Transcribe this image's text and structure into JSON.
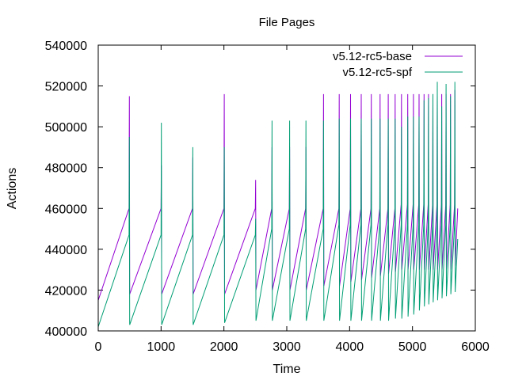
{
  "chart_data": {
    "type": "line",
    "title": "File Pages",
    "xlabel": "Time",
    "ylabel": "Actions",
    "xlim": [
      0,
      6000
    ],
    "ylim": [
      400000,
      540000
    ],
    "xticks": [
      "0",
      "1000",
      "2000",
      "3000",
      "4000",
      "5000",
      "6000"
    ],
    "yticks": [
      "400000",
      "420000",
      "440000",
      "460000",
      "480000",
      "500000",
      "520000",
      "540000"
    ],
    "grid": false,
    "legend_position": "top-right",
    "series": [
      {
        "name": "v5.12-rc5-base",
        "color": "#9400d3",
        "x": [
          0,
          490,
          495,
          500,
          1000,
          1005,
          1010,
          1500,
          1505,
          1510,
          2000,
          2005,
          2010,
          2500,
          2505,
          2510,
          2760,
          2765,
          2770,
          3040,
          3045,
          3050,
          3300,
          3305,
          3310,
          3580,
          3585,
          3590,
          3830,
          3835,
          3840,
          4010,
          4015,
          4020,
          4180,
          4185,
          4190,
          4340,
          4345,
          4350,
          4480,
          4485,
          4490,
          4610,
          4615,
          4620,
          4720,
          4725,
          4730,
          4820,
          4825,
          4830,
          4920,
          4925,
          4930,
          5010,
          5015,
          5020,
          5100,
          5105,
          5110,
          5180,
          5185,
          5190,
          5250,
          5255,
          5260,
          5320,
          5325,
          5330,
          5390,
          5395,
          5400,
          5460,
          5465,
          5470,
          5530,
          5535,
          5540,
          5600,
          5605,
          5610,
          5670,
          5675,
          5680,
          5720
        ],
        "y": [
          415000,
          460000,
          515000,
          418000,
          460000,
          481000,
          418000,
          460000,
          485000,
          418000,
          460000,
          516000,
          418000,
          460000,
          474000,
          420000,
          460000,
          490000,
          420000,
          460000,
          490000,
          420000,
          460000,
          490000,
          420000,
          460000,
          516000,
          422000,
          460000,
          516000,
          422000,
          460000,
          516000,
          424000,
          460000,
          516000,
          425000,
          460000,
          516000,
          426000,
          460000,
          516000,
          427000,
          460000,
          516000,
          428000,
          460000,
          516000,
          429000,
          462000,
          516000,
          430000,
          462000,
          516000,
          430000,
          462000,
          516000,
          430000,
          462000,
          516000,
          430000,
          462000,
          516000,
          430000,
          462000,
          516000,
          430000,
          462000,
          516000,
          430000,
          462000,
          516000,
          430000,
          462000,
          516000,
          430000,
          462000,
          516000,
          430000,
          462000,
          516000,
          430000,
          462000,
          518000,
          432000,
          460000
        ]
      },
      {
        "name": "v5.12-rc5-spf",
        "color": "#009e73",
        "x": [
          0,
          490,
          495,
          500,
          1000,
          1005,
          1010,
          1500,
          1505,
          1510,
          2000,
          2005,
          2010,
          2500,
          2505,
          2510,
          2760,
          2765,
          2770,
          3040,
          3045,
          3050,
          3300,
          3305,
          3310,
          3580,
          3585,
          3590,
          3830,
          3835,
          3840,
          4010,
          4015,
          4020,
          4180,
          4185,
          4190,
          4340,
          4345,
          4350,
          4480,
          4485,
          4490,
          4610,
          4615,
          4620,
          4720,
          4725,
          4730,
          4820,
          4825,
          4830,
          4920,
          4925,
          4930,
          5010,
          5015,
          5020,
          5100,
          5105,
          5110,
          5180,
          5185,
          5190,
          5250,
          5255,
          5260,
          5320,
          5325,
          5330,
          5390,
          5395,
          5400,
          5460,
          5465,
          5470,
          5530,
          5535,
          5540,
          5600,
          5605,
          5610,
          5670,
          5675,
          5680,
          5720
        ],
        "y": [
          402000,
          447000,
          495000,
          403000,
          447000,
          502000,
          403000,
          447000,
          490000,
          403000,
          447000,
          490000,
          404000,
          447000,
          455000,
          405000,
          450000,
          503000,
          405000,
          450000,
          503000,
          405000,
          450000,
          503000,
          405000,
          450000,
          503000,
          405000,
          452000,
          504000,
          405000,
          452000,
          504000,
          405000,
          452000,
          504000,
          405000,
          452000,
          504000,
          405000,
          452000,
          504000,
          405000,
          452000,
          504000,
          405000,
          452000,
          504000,
          406000,
          452000,
          500000,
          406000,
          452000,
          505000,
          407000,
          452000,
          505000,
          408000,
          452000,
          505000,
          410000,
          452000,
          513000,
          412000,
          452000,
          514000,
          413000,
          452000,
          516000,
          414000,
          452000,
          522000,
          415000,
          452000,
          510000,
          416000,
          452000,
          521000,
          417000,
          452000,
          515000,
          418000,
          452000,
          522000,
          419000,
          445000
        ]
      }
    ]
  }
}
